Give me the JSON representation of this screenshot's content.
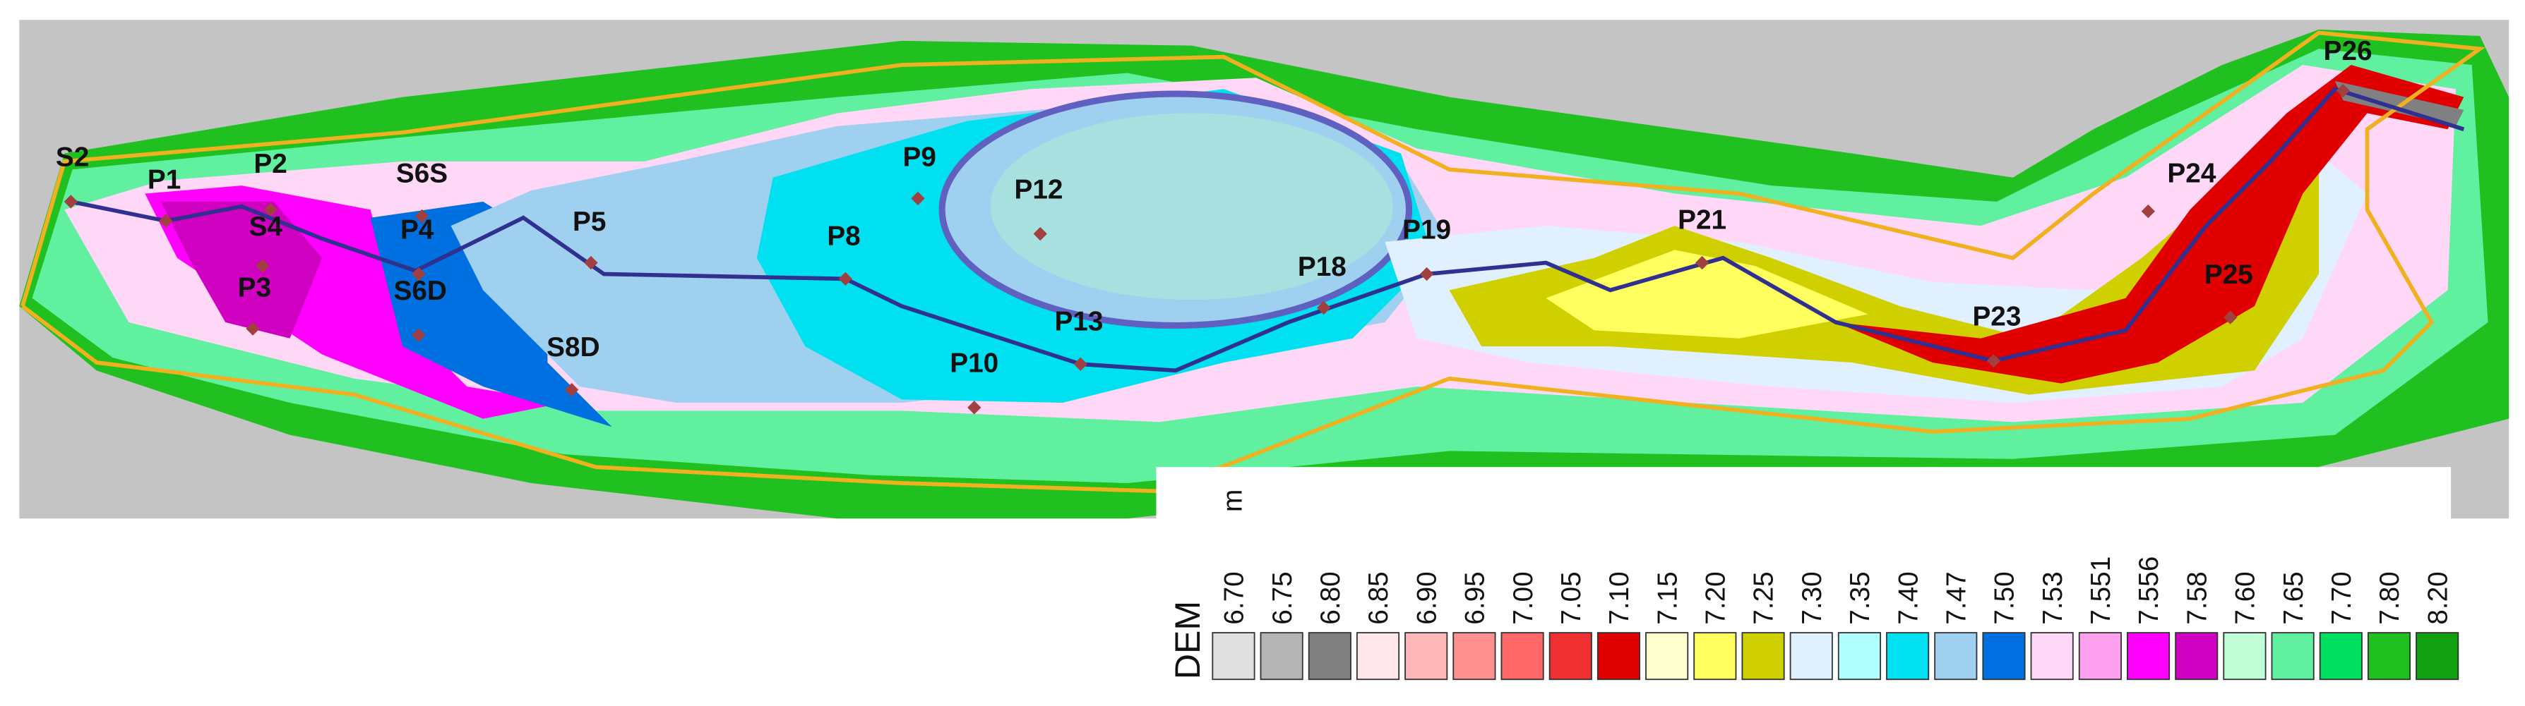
{
  "map": {
    "points": [
      "S2",
      "P1",
      "P2",
      "S6S",
      "S4",
      "P4",
      "P3",
      "S6D",
      "P5",
      "S8D",
      "P8",
      "P9",
      "P12",
      "P10",
      "P13",
      "P18",
      "P19",
      "P21",
      "P23",
      "P24",
      "P25",
      "P26"
    ]
  },
  "legend": {
    "title": "DEM",
    "unit": "m",
    "items": [
      {
        "label": "6.70",
        "color": "#e0e0e0"
      },
      {
        "label": "6.75",
        "color": "#b4b4b4"
      },
      {
        "label": "6.80",
        "color": "#808080"
      },
      {
        "label": "6.85",
        "color": "#ffe8ec"
      },
      {
        "label": "6.90",
        "color": "#ffb8b8"
      },
      {
        "label": "6.95",
        "color": "#ff9090"
      },
      {
        "label": "7.00",
        "color": "#ff6868"
      },
      {
        "label": "7.05",
        "color": "#f03030"
      },
      {
        "label": "7.10",
        "color": "#e00000"
      },
      {
        "label": "7.15",
        "color": "#ffffd0"
      },
      {
        "label": "7.20",
        "color": "#ffff60"
      },
      {
        "label": "7.25",
        "color": "#d0d000"
      },
      {
        "label": "7.30",
        "color": "#e0f0ff"
      },
      {
        "label": "7.35",
        "color": "#b0ffff"
      },
      {
        "label": "7.40",
        "color": "#00e0f0"
      },
      {
        "label": "7.47",
        "color": "#a0d0f0"
      },
      {
        "label": "7.50",
        "color": "#0070e0"
      },
      {
        "label": "7.53",
        "color": "#ffd8f8"
      },
      {
        "label": "7.551",
        "color": "#ffa0f0"
      },
      {
        "label": "7.556",
        "color": "#ff00ff"
      },
      {
        "label": "7.58",
        "color": "#d000c0"
      },
      {
        "label": "7.60",
        "color": "#c0ffd8"
      },
      {
        "label": "7.65",
        "color": "#60f0a0"
      },
      {
        "label": "7.70",
        "color": "#00e060"
      },
      {
        "label": "7.80",
        "color": "#20c020"
      },
      {
        "label": "8.20",
        "color": "#10a010"
      }
    ]
  }
}
